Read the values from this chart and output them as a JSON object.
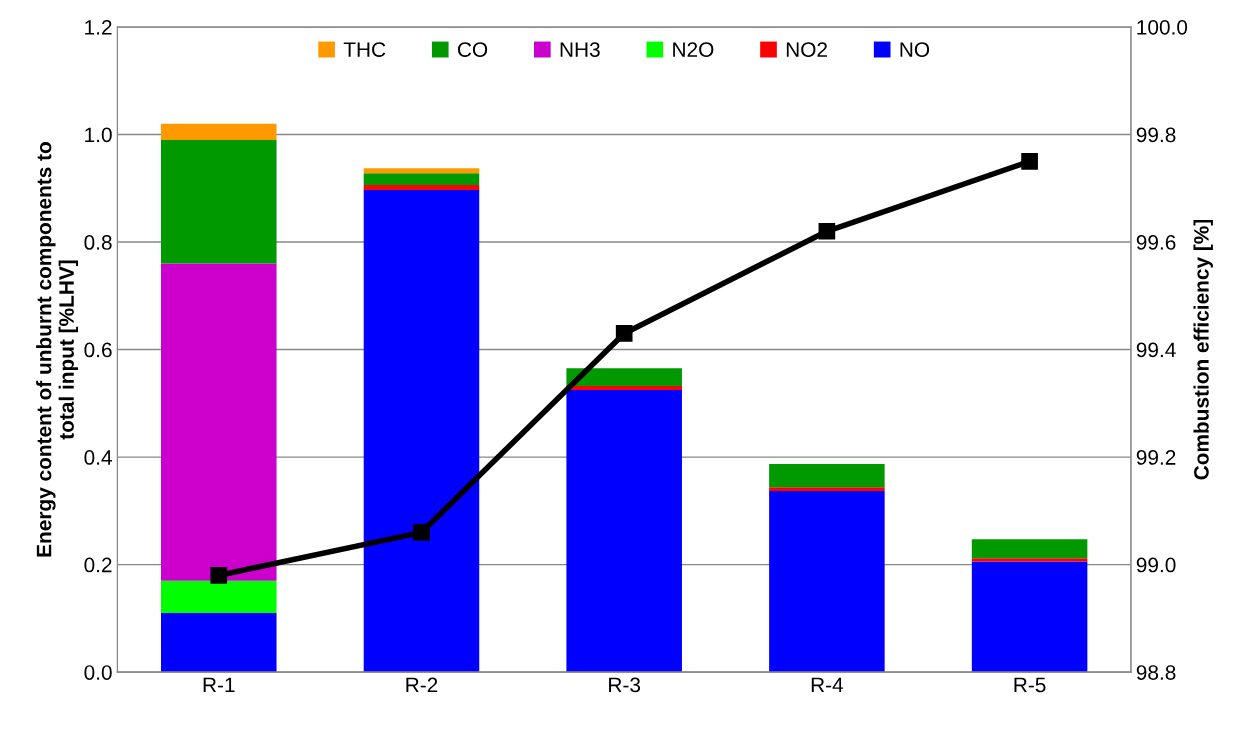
{
  "chart_data": {
    "type": "bar",
    "stacked": true,
    "categories": [
      "R-1",
      "R-2",
      "R-3",
      "R-4",
      "R-5"
    ],
    "ylabel": "Energy content of unburnt components to\ntotal input [%LHV]",
    "y2label": "Combustion efficiency [%]",
    "series": [
      {
        "name": "NO",
        "color": "#0000ff",
        "values": [
          0.11,
          0.897,
          0.525,
          0.337,
          0.206
        ]
      },
      {
        "name": "NO2",
        "color": "#ff0000",
        "values": [
          0,
          0.009,
          0.007,
          0.007,
          0.006
        ]
      },
      {
        "name": "N2O",
        "color": "#00ff00",
        "values": [
          0.06,
          0,
          0,
          0,
          0
        ]
      },
      {
        "name": "NH3",
        "color": "#cc00cc",
        "values": [
          0.59,
          0,
          0,
          0,
          0
        ]
      },
      {
        "name": "CO",
        "color": "#009900",
        "values": [
          0.23,
          0.022,
          0.033,
          0.043,
          0.035
        ]
      },
      {
        "name": "THC",
        "color": "#ff9900",
        "values": [
          0.03,
          0.009,
          0,
          0,
          0
        ]
      },
      {
        "type": "line",
        "axis": "y2",
        "color": "#000000",
        "marker": "square",
        "line_style": "solid",
        "values": [
          98.98,
          99.06,
          99.43,
          99.62,
          99.75
        ]
      }
    ],
    "ylim": [
      0,
      1.2
    ],
    "yticks": [
      {
        "value": 0,
        "label": "0.0"
      },
      {
        "value": 0.2,
        "label": "0.2"
      },
      {
        "value": 0.4,
        "label": "0.4"
      },
      {
        "value": 0.6,
        "label": "0.6"
      },
      {
        "value": 0.8,
        "label": "0.8"
      },
      {
        "value": 1.0,
        "label": "1.0"
      },
      {
        "value": 1.2,
        "label": "1.2"
      }
    ],
    "y2lim": [
      98.8,
      100
    ],
    "y2ticks": [
      {
        "value": 98.8,
        "label": "98.8"
      },
      {
        "value": 99.0,
        "label": "99.0"
      },
      {
        "value": 99.2,
        "label": "99.2"
      },
      {
        "value": 99.4,
        "label": "99.4"
      },
      {
        "value": 99.6,
        "label": "99.6"
      },
      {
        "value": 99.8,
        "label": "99.8"
      },
      {
        "value": 100,
        "label": "100.0"
      }
    ],
    "grid": "y",
    "legend": "top"
  }
}
